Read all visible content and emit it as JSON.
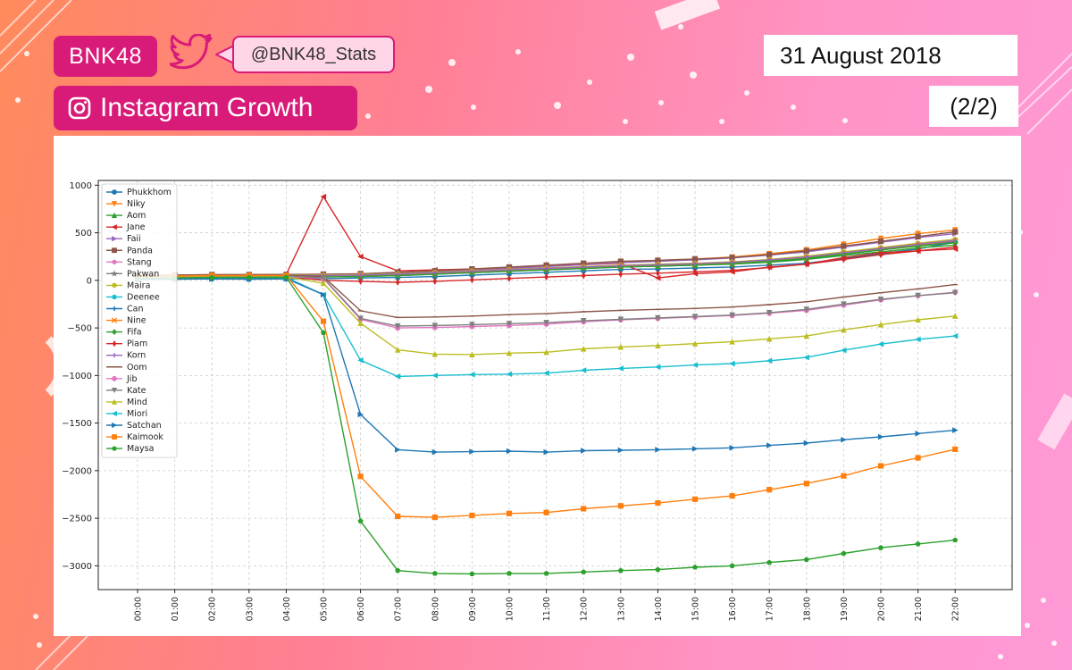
{
  "header": {
    "brand": "BNK48",
    "twitter_icon": "twitter-bird-icon",
    "handle": "@BNK48_Stats",
    "instagram_icon": "instagram-icon",
    "title": "Instagram Growth",
    "date": "31 August 2018",
    "page": "(2/2)"
  },
  "colors": {
    "accent": "#d81b78",
    "handle_bg": "#ffd6e8"
  },
  "chart_data": {
    "type": "line",
    "title": "",
    "xlabel": "",
    "ylabel": "",
    "x": [
      "00:00",
      "01:00",
      "02:00",
      "03:00",
      "04:00",
      "05:00",
      "06:00",
      "07:00",
      "08:00",
      "09:00",
      "10:00",
      "11:00",
      "12:00",
      "13:00",
      "14:00",
      "15:00",
      "16:00",
      "17:00",
      "18:00",
      "19:00",
      "20:00",
      "21:00",
      "22:00"
    ],
    "ylim": [
      -3250,
      1050
    ],
    "yticks": [
      1000,
      500,
      0,
      -500,
      -1000,
      -1500,
      -2000,
      -2500,
      -3000
    ],
    "grid": true,
    "legend_position": "top-left",
    "series": [
      {
        "name": "Phukkhom",
        "color": "#1f77b4",
        "marker": "o",
        "values": [
          10,
          12,
          15,
          12,
          15,
          18,
          25,
          30,
          40,
          55,
          70,
          85,
          100,
          115,
          120,
          130,
          140,
          160,
          180,
          230,
          280,
          330,
          400
        ]
      },
      {
        "name": "Niky",
        "color": "#ff7f0e",
        "marker": "v",
        "values": [
          40,
          45,
          50,
          52,
          55,
          60,
          70,
          80,
          95,
          115,
          135,
          155,
          175,
          195,
          210,
          225,
          245,
          280,
          320,
          380,
          440,
          490,
          530
        ]
      },
      {
        "name": "Aom",
        "color": "#2ca02c",
        "marker": "^",
        "values": [
          30,
          35,
          40,
          40,
          42,
          40,
          45,
          55,
          70,
          85,
          100,
          115,
          130,
          145,
          150,
          160,
          170,
          190,
          220,
          260,
          300,
          340,
          370
        ]
      },
      {
        "name": "Jane",
        "color": "#d62728",
        "marker": "<",
        "values": [
          50,
          55,
          60,
          60,
          62,
          880,
          250,
          100,
          110,
          120,
          135,
          150,
          165,
          180,
          25,
          70,
          90,
          140,
          170,
          240,
          290,
          310,
          330
        ]
      },
      {
        "name": "Faii",
        "color": "#9467bd",
        "marker": ">",
        "values": [
          45,
          50,
          55,
          55,
          58,
          60,
          65,
          75,
          90,
          105,
          125,
          145,
          165,
          185,
          200,
          215,
          235,
          265,
          300,
          350,
          400,
          450,
          490
        ]
      },
      {
        "name": "Panda",
        "color": "#8c564b",
        "marker": "s",
        "values": [
          50,
          55,
          60,
          60,
          62,
          65,
          70,
          85,
          100,
          120,
          140,
          160,
          180,
          200,
          210,
          225,
          240,
          270,
          310,
          360,
          410,
          460,
          510
        ]
      },
      {
        "name": "Stang",
        "color": "#e377c2",
        "marker": "p",
        "values": [
          35,
          40,
          45,
          45,
          48,
          50,
          55,
          65,
          80,
          95,
          110,
          125,
          140,
          155,
          165,
          175,
          190,
          215,
          250,
          295,
          340,
          390,
          430
        ]
      },
      {
        "name": "Pakwan",
        "color": "#7f7f7f",
        "marker": "*",
        "values": [
          30,
          35,
          40,
          40,
          42,
          44,
          50,
          60,
          75,
          90,
          105,
          120,
          135,
          150,
          160,
          170,
          185,
          210,
          240,
          285,
          330,
          375,
          415
        ]
      },
      {
        "name": "Maira",
        "color": "#bcbd22",
        "marker": "h",
        "values": [
          40,
          45,
          50,
          50,
          52,
          55,
          60,
          70,
          85,
          100,
          115,
          130,
          145,
          160,
          170,
          180,
          195,
          220,
          255,
          300,
          345,
          390,
          430
        ]
      },
      {
        "name": "Deenee",
        "color": "#17becf",
        "marker": "H",
        "values": [
          25,
          30,
          35,
          35,
          38,
          40,
          45,
          55,
          70,
          85,
          100,
          115,
          130,
          145,
          155,
          165,
          180,
          205,
          235,
          280,
          325,
          370,
          410
        ]
      },
      {
        "name": "Can",
        "color": "#1f77b4",
        "marker": "+",
        "values": [
          20,
          25,
          30,
          30,
          32,
          35,
          40,
          50,
          65,
          80,
          95,
          110,
          125,
          140,
          150,
          160,
          175,
          200,
          230,
          275,
          320,
          365,
          405
        ]
      },
      {
        "name": "Nine",
        "color": "#ff7f0e",
        "marker": "x",
        "values": [
          30,
          35,
          40,
          40,
          42,
          45,
          50,
          60,
          75,
          90,
          105,
          120,
          135,
          150,
          160,
          170,
          185,
          210,
          240,
          285,
          330,
          375,
          415
        ]
      },
      {
        "name": "Fifa",
        "color": "#2ca02c",
        "marker": "D",
        "values": [
          20,
          25,
          30,
          30,
          32,
          35,
          40,
          50,
          65,
          80,
          95,
          110,
          125,
          140,
          150,
          160,
          175,
          200,
          230,
          275,
          320,
          360,
          395
        ]
      },
      {
        "name": "Piam",
        "color": "#d62728",
        "marker": "d",
        "values": [
          30,
          35,
          40,
          40,
          42,
          0,
          -10,
          -20,
          -10,
          5,
          20,
          35,
          50,
          65,
          75,
          90,
          105,
          135,
          170,
          220,
          270,
          310,
          350
        ]
      },
      {
        "name": "Korn",
        "color": "#9467bd",
        "marker": "|",
        "values": [
          35,
          40,
          45,
          45,
          48,
          50,
          55,
          65,
          80,
          95,
          110,
          125,
          140,
          155,
          165,
          175,
          190,
          215,
          245,
          290,
          335,
          380,
          420
        ]
      },
      {
        "name": "Oom",
        "color": "#8c564b",
        "marker": "_",
        "values": [
          40,
          45,
          50,
          50,
          52,
          40,
          -320,
          -390,
          -385,
          -375,
          -360,
          -350,
          -330,
          -315,
          -305,
          -295,
          -280,
          -255,
          -225,
          -175,
          -130,
          -90,
          -45
        ]
      },
      {
        "name": "Jib",
        "color": "#e377c2",
        "marker": "o",
        "values": [
          30,
          35,
          40,
          40,
          42,
          20,
          -410,
          -500,
          -495,
          -485,
          -475,
          -460,
          -435,
          -415,
          -400,
          -385,
          -370,
          -345,
          -315,
          -260,
          -205,
          -160,
          -125
        ]
      },
      {
        "name": "Kate",
        "color": "#7f7f7f",
        "marker": "v",
        "values": [
          35,
          40,
          45,
          45,
          48,
          25,
          -400,
          -480,
          -475,
          -465,
          -455,
          -445,
          -425,
          -410,
          -395,
          -380,
          -365,
          -340,
          -305,
          -250,
          -200,
          -160,
          -130
        ]
      },
      {
        "name": "Mind",
        "color": "#bcbd22",
        "marker": "^",
        "values": [
          25,
          30,
          35,
          35,
          38,
          -30,
          -450,
          -730,
          -775,
          -780,
          -765,
          -755,
          -720,
          -700,
          -685,
          -665,
          -645,
          -615,
          -585,
          -520,
          -465,
          -415,
          -375
        ]
      },
      {
        "name": "Miori",
        "color": "#17becf",
        "marker": "<",
        "values": [
          20,
          25,
          30,
          30,
          32,
          -150,
          -840,
          -1010,
          -1000,
          -990,
          -985,
          -975,
          -945,
          -925,
          -910,
          -890,
          -875,
          -845,
          -810,
          -735,
          -670,
          -620,
          -585
        ]
      },
      {
        "name": "Satchan",
        "color": "#1f77b4",
        "marker": ">",
        "values": [
          10,
          15,
          15,
          15,
          18,
          -150,
          -1410,
          -1780,
          -1805,
          -1800,
          -1795,
          -1805,
          -1790,
          -1785,
          -1780,
          -1770,
          -1760,
          -1735,
          -1710,
          -1675,
          -1645,
          -1610,
          -1575
        ]
      },
      {
        "name": "Kaimook",
        "color": "#ff7f0e",
        "marker": "s",
        "values": [
          40,
          45,
          50,
          50,
          52,
          -430,
          -2060,
          -2480,
          -2490,
          -2470,
          -2450,
          -2440,
          -2400,
          -2370,
          -2340,
          -2300,
          -2265,
          -2200,
          -2135,
          -2055,
          -1950,
          -1865,
          -1775
        ]
      },
      {
        "name": "Maysa",
        "color": "#2ca02c",
        "marker": "p",
        "values": [
          20,
          25,
          30,
          30,
          32,
          -550,
          -2530,
          -3050,
          -3080,
          -3085,
          -3080,
          -3080,
          -3065,
          -3050,
          -3040,
          -3015,
          -3000,
          -2965,
          -2935,
          -2870,
          -2810,
          -2770,
          -2730
        ]
      }
    ]
  }
}
